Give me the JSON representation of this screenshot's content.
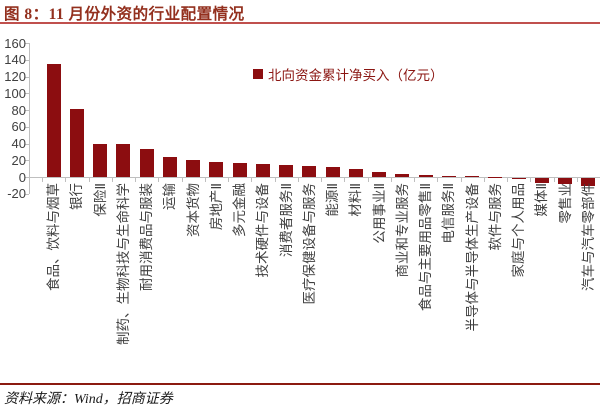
{
  "header": {
    "title": "图 8：11 月份外资的行业配置情况"
  },
  "footer": {
    "source": "资料来源：Wind，招商证券"
  },
  "legend": {
    "label": "北向资金累计净买入（亿元）"
  },
  "colors": {
    "bar": "#8c0d10",
    "title": "#93301e",
    "top_rule": "#c0504d",
    "bottom_rule": "#8b1a10",
    "axis": "#bfbfbf",
    "tick_label": "#404040",
    "legend_text": "#8b1612"
  },
  "chart_data": {
    "type": "bar",
    "title": "图 8：11 月份外资的行业配置情况",
    "legend_entries": [
      "北向资金累计净买入（亿元）"
    ],
    "legend_position": "top-right-inside",
    "grid": false,
    "xlabel": "",
    "ylabel": "",
    "ylim": [
      -20,
      160
    ],
    "yticks": [
      160,
      140,
      120,
      100,
      80,
      60,
      40,
      20,
      0,
      -20
    ],
    "categories": [
      "食品、饮料与烟草",
      "银行",
      "保险Ⅱ",
      "制药、生物科技与生命科学",
      "耐用消费品与服装",
      "运输",
      "资本货物",
      "房地产Ⅱ",
      "多元金融",
      "技术硬件与设备",
      "消费者服务Ⅱ",
      "医疗保健设备与服务",
      "能源Ⅱ",
      "材料Ⅱ",
      "公用事业Ⅱ",
      "商业和专业服务",
      "食品与主要用品零售Ⅱ",
      "电信服务Ⅱ",
      "半导体与半导体生产设备",
      "软件与服务",
      "家庭与个人用品",
      "媒体Ⅱ",
      "零售业",
      "汽车与汽车零部件"
    ],
    "values": [
      135,
      81,
      40,
      39,
      33,
      24,
      20,
      18,
      17,
      15,
      14,
      13,
      12,
      9,
      6,
      4,
      2.5,
      1.5,
      1,
      0.5,
      -1.5,
      -6,
      -7,
      -9
    ]
  }
}
